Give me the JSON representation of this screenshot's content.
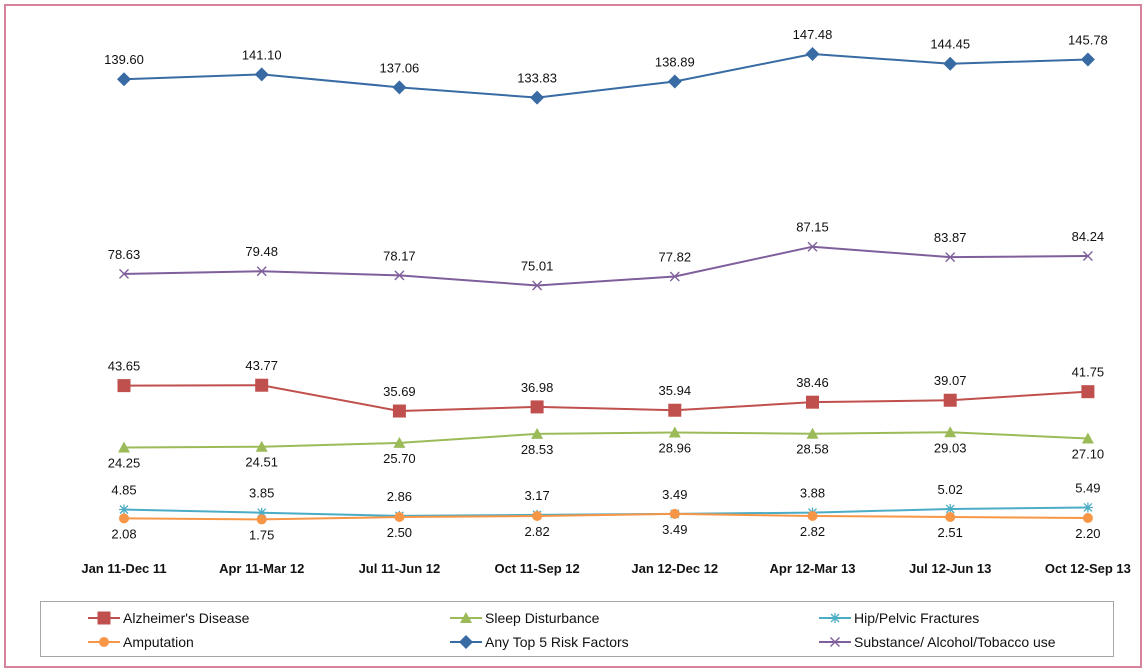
{
  "chart_data": {
    "type": "line",
    "title": "",
    "xlabel": "",
    "ylabel": "",
    "categories": [
      "Jan 11-Dec 11",
      "Apr 11-Mar 12",
      "Jul 11-Jun 12",
      "Oct 11-Sep 12",
      "Jan 12-Dec 12",
      "Apr 12-Mar 13",
      "Jul 12-Jun 13",
      "Oct 12-Sep 13"
    ],
    "grid": false,
    "y_axis_visible": false,
    "legend_position": "bottom",
    "series": [
      {
        "name": "Alzheimer's Disease",
        "color": "#c0504d",
        "marker": "square",
        "label_position": "above",
        "values": [
          43.65,
          43.77,
          35.69,
          36.98,
          35.94,
          38.46,
          39.07,
          41.75
        ],
        "labels": [
          "43.65",
          "43.77",
          "35.69",
          "36.98",
          "35.94",
          "38.46",
          "39.07",
          "41.75"
        ]
      },
      {
        "name": "Sleep Disturbance",
        "color": "#9bbb59",
        "marker": "triangle",
        "label_position": "below",
        "values": [
          24.25,
          24.51,
          25.7,
          28.53,
          28.96,
          28.58,
          29.03,
          27.1
        ],
        "labels": [
          "24.25",
          "24.51",
          "25.70",
          "28.53",
          "28.96",
          "28.58",
          "29.03",
          "27.10"
        ]
      },
      {
        "name": "Hip/Pelvic Fractures",
        "color": "#4bacc6",
        "marker": "star",
        "label_position": "above",
        "values": [
          4.85,
          3.85,
          2.86,
          3.17,
          3.49,
          3.88,
          5.02,
          5.49
        ],
        "labels": [
          "4.85",
          "3.85",
          "2.86",
          "3.17",
          "3.49",
          "3.88",
          "5.02",
          "5.49"
        ]
      },
      {
        "name": "Amputation",
        "color": "#f79646",
        "marker": "circle",
        "label_position": "below",
        "values": [
          2.08,
          1.75,
          2.5,
          2.82,
          3.49,
          2.82,
          2.51,
          2.2
        ],
        "labels": [
          "2.08",
          "1.75",
          "2.50",
          "2.82",
          "3.49",
          "2.82",
          "2.51",
          "2.20"
        ]
      },
      {
        "name": "Any Top 5 Risk Factors",
        "color": "#386ba4",
        "marker": "diamond",
        "label_position": "above",
        "values": [
          139.6,
          141.1,
          137.06,
          133.83,
          138.89,
          147.48,
          144.45,
          145.78
        ],
        "labels": [
          "139.60",
          "141.10",
          "137.06",
          "133.83",
          "138.89",
          "147.48",
          "144.45",
          "145.78"
        ]
      },
      {
        "name": "Substance/ Alcohol/Tobacco use",
        "color": "#7f5f9b",
        "marker": "x",
        "label_position": "above",
        "values": [
          78.63,
          79.48,
          78.17,
          75.01,
          77.82,
          87.15,
          83.87,
          84.24
        ],
        "labels": [
          "78.63",
          "79.48",
          "78.17",
          "75.01",
          "77.82",
          "87.15",
          "83.87",
          "84.24"
        ]
      }
    ]
  }
}
